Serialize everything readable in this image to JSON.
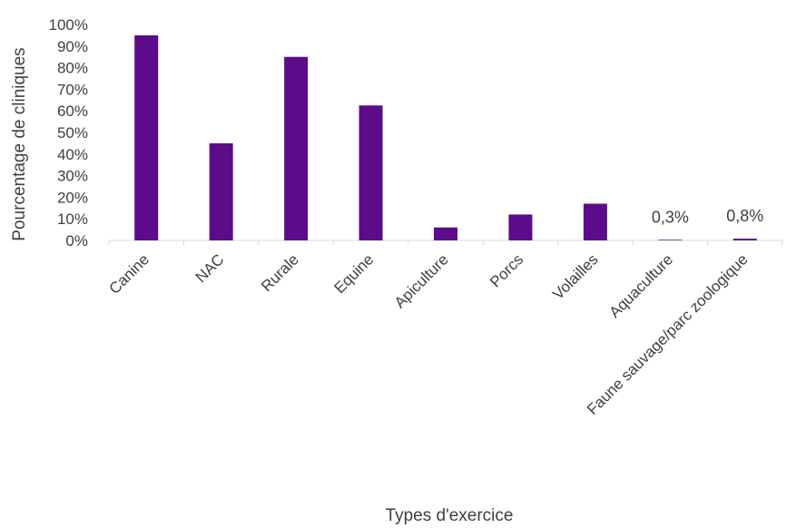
{
  "chart_data": {
    "type": "bar",
    "title": "",
    "xlabel": "Types d'exercice",
    "ylabel": "Pourcentage de cliniques",
    "categories": [
      "Canine",
      "NAC",
      "Rurale",
      "Equine",
      "Apiculture",
      "Porcs",
      "Volailles",
      "Aquaculture",
      "Faune sauvage/parc zoologique"
    ],
    "values": [
      95,
      45,
      85,
      62.5,
      6,
      12,
      17,
      0.3,
      0.8
    ],
    "ylim": [
      0,
      100
    ],
    "yticks": [
      0,
      10,
      20,
      30,
      40,
      50,
      60,
      70,
      80,
      90,
      100
    ],
    "ytick_labels": [
      "0%",
      "10%",
      "20%",
      "30%",
      "40%",
      "50%",
      "60%",
      "70%",
      "80%",
      "90%",
      "100%"
    ],
    "data_labels": [
      "",
      "",
      "",
      "",
      "",
      "",
      "",
      "0,3%",
      "0,8%"
    ],
    "bar_color": "#5c0b8a",
    "axis_color": "#d9d9d9",
    "grid": false,
    "legend": false
  }
}
